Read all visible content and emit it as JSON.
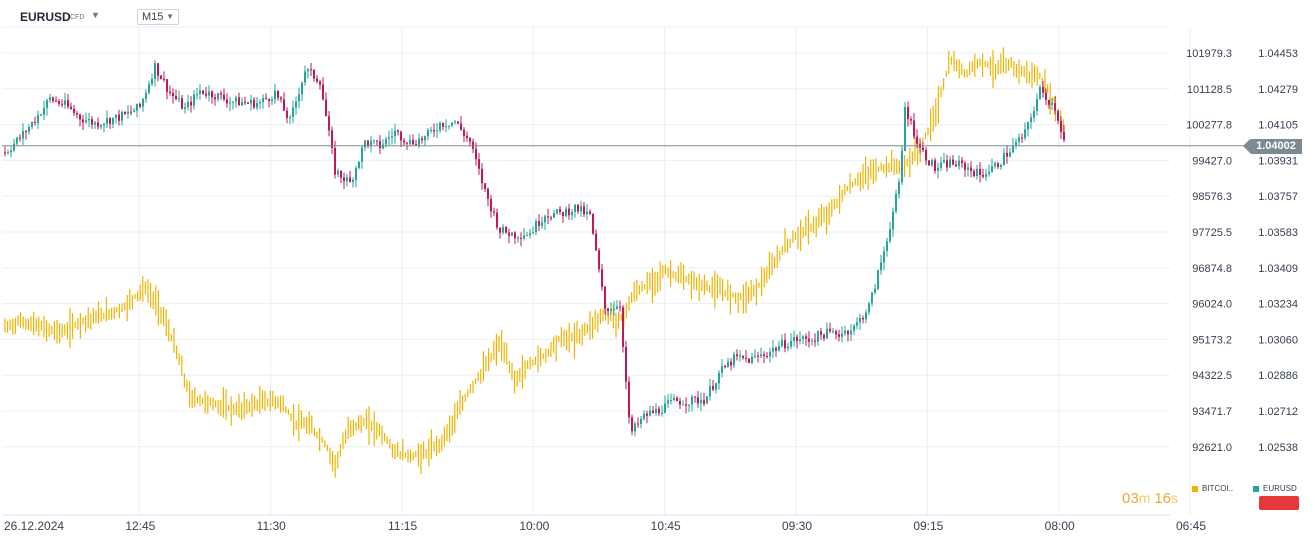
{
  "header": {
    "symbol": "EURUSD",
    "instrument_type": "CFD",
    "timeframe": "M15"
  },
  "current_price_label": "1.04002",
  "countdown": {
    "minutes": "03",
    "m_unit": "m",
    "seconds": "16",
    "s_unit": "s"
  },
  "legend": [
    {
      "label": "BITCOI..",
      "color": "#f0b400"
    },
    {
      "label": "EURUSD",
      "color": "#26a69a"
    }
  ],
  "colors": {
    "up": "#26a69a",
    "down": "#c2185b",
    "overlay": "#f0b400",
    "grid": "#eceff1",
    "price_line": "#7d8a92",
    "action_button": "#e5383b"
  },
  "icons": {
    "timeframe_dropdown": "chevron-down-icon",
    "symbol_dropdown": "chevron-down-icon"
  },
  "chart_data": {
    "type": "line",
    "title": "EURUSD",
    "timeframe": "M15",
    "x_ticks": [
      "26.12.2024",
      "12:45",
      "11:30",
      "11:15",
      "10:00",
      "10:45",
      "09:30",
      "09:15",
      "08:00",
      "06:45"
    ],
    "y_right": {
      "label": "EURUSD",
      "ticks": [
        "1.04453",
        "1.04279",
        "1.04105",
        "1.03931",
        "1.03757",
        "1.03583",
        "1.03409",
        "1.03234",
        "1.03060",
        "1.02886",
        "1.02712",
        "1.02538"
      ],
      "range": [
        1.02538,
        1.04453
      ]
    },
    "y_left": {
      "label": "BITCOI..",
      "ticks": [
        "101979.3",
        "101128.5",
        "100277.8",
        "99427.0",
        "98576.3",
        "97725.5",
        "96874.8",
        "96024.0",
        "95173.2",
        "94322.5",
        "93471.7",
        "92621.0"
      ],
      "range": [
        92621.0,
        101979.3
      ]
    },
    "current_price": 1.04002,
    "grid": true,
    "legend_position": "bottom-right",
    "series": [
      {
        "name": "EURUSD",
        "axis": "right",
        "x": [
          0,
          15,
          30,
          45,
          60,
          75,
          90,
          105,
          120,
          135,
          150,
          165,
          180,
          195,
          210,
          225,
          240,
          255,
          270,
          285,
          300,
          315,
          330,
          345,
          360,
          375,
          390,
          405,
          420,
          435,
          450,
          465,
          480,
          495,
          510,
          525,
          540,
          555,
          570,
          585,
          600,
          615,
          625,
          640,
          655,
          670,
          685,
          700,
          715,
          730,
          745,
          760,
          775,
          790,
          805,
          820,
          835,
          850,
          865,
          880,
          895,
          900,
          915,
          930,
          945,
          960,
          975,
          990,
          1005,
          1020,
          1035,
          1050,
          1060
        ],
        "values": [
          1.0397,
          1.0404,
          1.0413,
          1.0423,
          1.042,
          1.0414,
          1.0411,
          1.0413,
          1.0415,
          1.0419,
          1.0439,
          1.0426,
          1.0418,
          1.0427,
          1.0425,
          1.0422,
          1.0421,
          1.0421,
          1.0426,
          1.0412,
          1.0437,
          1.0432,
          1.0388,
          1.0382,
          1.0402,
          1.04,
          1.0407,
          1.0402,
          1.0404,
          1.0411,
          1.0412,
          1.0402,
          1.0378,
          1.0359,
          1.0357,
          1.0358,
          1.0367,
          1.0367,
          1.037,
          1.0366,
          1.0321,
          1.0323,
          1.026,
          1.0269,
          1.0272,
          1.0276,
          1.0276,
          1.0277,
          1.029,
          1.0297,
          1.0296,
          1.0299,
          1.0303,
          1.0306,
          1.0306,
          1.0309,
          1.0309,
          1.0312,
          1.0323,
          1.0351,
          1.0383,
          1.0419,
          1.0399,
          1.0389,
          1.0392,
          1.039,
          1.0386,
          1.039,
          1.0398,
          1.0406,
          1.0427,
          1.0419,
          1.0401
        ]
      },
      {
        "name": "BITCOI..",
        "axis": "left",
        "x": [
          0,
          15,
          30,
          45,
          60,
          75,
          90,
          105,
          120,
          130,
          140,
          155,
          170,
          185,
          200,
          215,
          230,
          245,
          260,
          275,
          290,
          305,
          320,
          330,
          345,
          360,
          375,
          390,
          405,
          420,
          435,
          450,
          465,
          480,
          495,
          510,
          525,
          540,
          555,
          570,
          585,
          600,
          615,
          630,
          645,
          660,
          675,
          690,
          705,
          720,
          735,
          750,
          765,
          780,
          795,
          810,
          825,
          840,
          855,
          870,
          885,
          900,
          915,
          930,
          945,
          960,
          975,
          990,
          1005,
          1020,
          1035,
          1045,
          1060
        ],
        "values": [
          95450,
          95600,
          95500,
          95400,
          95350,
          95600,
          95700,
          95800,
          95950,
          96200,
          96400,
          95900,
          95000,
          93800,
          93700,
          93600,
          93500,
          93600,
          93700,
          93700,
          93200,
          93100,
          92700,
          92200,
          93100,
          93200,
          93000,
          92500,
          92400,
          92450,
          92700,
          93300,
          94000,
          94500,
          95100,
          94200,
          94600,
          94800,
          95200,
          95200,
          95500,
          95800,
          95600,
          96300,
          96500,
          96800,
          96650,
          96500,
          96400,
          96300,
          96150,
          96350,
          96800,
          97400,
          97700,
          97900,
          98200,
          98700,
          99000,
          99200,
          99300,
          99300,
          99700,
          100500,
          101800,
          101500,
          101800,
          101600,
          101700,
          101500,
          101400,
          101000,
          100200
        ]
      }
    ]
  }
}
